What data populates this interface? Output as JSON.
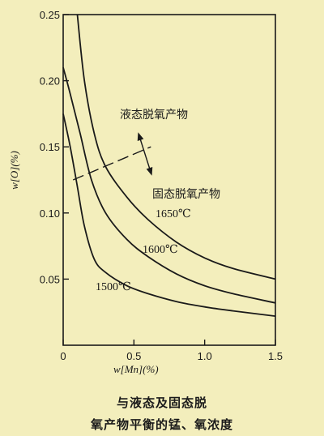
{
  "chart_data": {
    "type": "line",
    "xlabel": "w[Mn](%)",
    "ylabel": "w[O](%)",
    "xlim": [
      0,
      1.5
    ],
    "ylim": [
      0,
      0.25
    ],
    "x_ticks": [
      "0",
      "0.5",
      "1.0",
      "1.5"
    ],
    "y_ticks": [
      "0.05",
      "0.10",
      "0.15",
      "0.20",
      "0.25"
    ],
    "series": [
      {
        "name": "1650℃",
        "points": [
          [
            0.1,
            0.25
          ],
          [
            0.15,
            0.2
          ],
          [
            0.22,
            0.16
          ],
          [
            0.3,
            0.135
          ],
          [
            0.45,
            0.112
          ],
          [
            0.6,
            0.095
          ],
          [
            0.8,
            0.078
          ],
          [
            1.0,
            0.066
          ],
          [
            1.2,
            0.058
          ],
          [
            1.5,
            0.05
          ]
        ]
      },
      {
        "name": "1600℃",
        "points": [
          [
            0.0,
            0.21
          ],
          [
            0.05,
            0.19
          ],
          [
            0.12,
            0.16
          ],
          [
            0.2,
            0.125
          ],
          [
            0.3,
            0.1
          ],
          [
            0.45,
            0.08
          ],
          [
            0.6,
            0.067
          ],
          [
            0.8,
            0.054
          ],
          [
            1.0,
            0.045
          ],
          [
            1.2,
            0.039
          ],
          [
            1.5,
            0.032
          ]
        ]
      },
      {
        "name": "1500℃",
        "points": [
          [
            0.0,
            0.175
          ],
          [
            0.05,
            0.15
          ],
          [
            0.1,
            0.12
          ],
          [
            0.15,
            0.09
          ],
          [
            0.22,
            0.065
          ],
          [
            0.3,
            0.055
          ],
          [
            0.45,
            0.045
          ],
          [
            0.6,
            0.039
          ],
          [
            0.8,
            0.033
          ],
          [
            1.0,
            0.029
          ],
          [
            1.2,
            0.026
          ],
          [
            1.5,
            0.022
          ]
        ]
      }
    ],
    "boundary": {
      "points": [
        [
          0.07,
          0.125
        ],
        [
          0.62,
          0.15
        ]
      ]
    },
    "annotations": {
      "liquid": "液态脱氧产物",
      "solid": "固态脱氧产物"
    },
    "grid": false
  },
  "caption": {
    "line1": "与液态及固态脱",
    "line2": "氧产物平衡的锰、氧浓度"
  }
}
